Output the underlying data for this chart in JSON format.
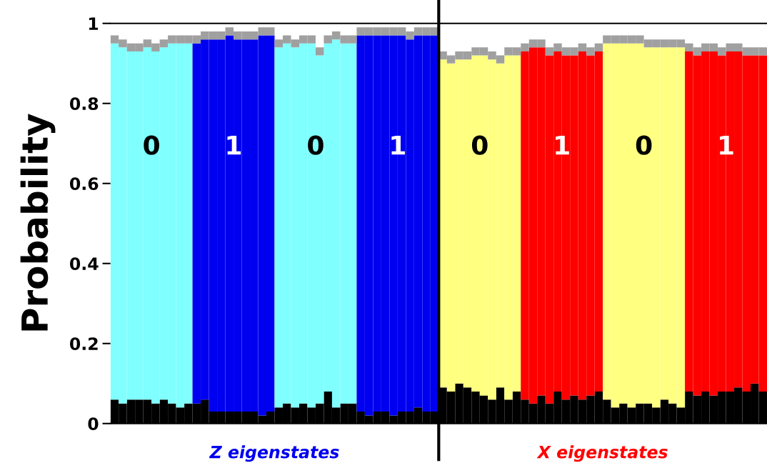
{
  "chart_data": {
    "type": "bar",
    "stacked": true,
    "ylabel": "Probability",
    "ylim": [
      0,
      1
    ],
    "yticks": [
      0,
      0.2,
      0.4,
      0.6,
      0.8,
      1
    ],
    "tick_labels": "y",
    "grid": false,
    "categories": [
      null,
      null,
      null,
      null,
      null,
      null,
      null,
      null,
      null,
      null,
      null,
      null,
      null,
      null,
      null,
      null,
      null,
      null,
      null,
      null,
      null,
      null,
      null,
      null,
      null,
      null,
      null,
      null,
      null,
      null,
      null,
      null,
      null,
      null,
      null,
      null,
      null,
      null,
      null,
      null,
      null,
      null,
      null,
      null,
      null,
      null,
      null,
      null,
      null,
      null,
      null,
      null,
      null,
      null,
      null,
      null,
      null,
      null,
      null,
      null,
      null,
      null,
      null,
      null,
      null,
      null,
      null,
      null,
      null,
      null,
      null,
      null,
      null,
      null,
      null,
      null,
      null,
      null,
      null,
      null
    ],
    "series": [
      {
        "color": "#000000",
        "values": [
          0.06,
          0.05,
          0.06,
          0.06,
          0.06,
          0.05,
          0.06,
          0.05,
          0.04,
          0.05,
          0.05,
          0.06,
          0.03,
          0.03,
          0.03,
          0.03,
          0.03,
          0.03,
          0.02,
          0.03,
          0.04,
          0.05,
          0.04,
          0.05,
          0.04,
          0.05,
          0.08,
          0.04,
          0.05,
          0.05,
          0.03,
          0.02,
          0.03,
          0.03,
          0.02,
          0.03,
          0.03,
          0.04,
          0.03,
          0.03,
          0.09,
          0.08,
          0.1,
          0.09,
          0.08,
          0.07,
          0.06,
          0.09,
          0.06,
          0.08,
          0.06,
          0.05,
          0.07,
          0.05,
          0.08,
          0.06,
          0.07,
          0.06,
          0.07,
          0.08,
          0.06,
          0.04,
          0.05,
          0.04,
          0.05,
          0.05,
          0.04,
          0.06,
          0.05,
          0.04,
          0.08,
          0.07,
          0.08,
          0.07,
          0.08,
          0.08,
          0.09,
          0.08,
          0.1,
          0.08
        ]
      },
      {
        "colors": [
          "#80ffff",
          "#80ffff",
          "#80ffff",
          "#80ffff",
          "#80ffff",
          "#80ffff",
          "#80ffff",
          "#80ffff",
          "#80ffff",
          "#80ffff",
          "#0000f0",
          "#0000f0",
          "#0000f0",
          "#0000f0",
          "#0000f0",
          "#0000f0",
          "#0000f0",
          "#0000f0",
          "#0000f0",
          "#0000f0",
          "#80ffff",
          "#80ffff",
          "#80ffff",
          "#80ffff",
          "#80ffff",
          "#80ffff",
          "#80ffff",
          "#80ffff",
          "#80ffff",
          "#80ffff",
          "#0000f0",
          "#0000f0",
          "#0000f0",
          "#0000f0",
          "#0000f0",
          "#0000f0",
          "#0000f0",
          "#0000f0",
          "#0000f0",
          "#0000f0",
          "#ffff80",
          "#ffff80",
          "#ffff80",
          "#ffff80",
          "#ffff80",
          "#ffff80",
          "#ffff80",
          "#ffff80",
          "#ffff80",
          "#ffff80",
          "#ff0000",
          "#ff0000",
          "#ff0000",
          "#ff0000",
          "#ff0000",
          "#ff0000",
          "#ff0000",
          "#ff0000",
          "#ff0000",
          "#ff0000",
          "#ffff80",
          "#ffff80",
          "#ffff80",
          "#ffff80",
          "#ffff80",
          "#ffff80",
          "#ffff80",
          "#ffff80",
          "#ffff80",
          "#ffff80",
          "#ff0000",
          "#ff0000",
          "#ff0000",
          "#ff0000",
          "#ff0000",
          "#ff0000",
          "#ff0000",
          "#ff0000",
          "#ff0000",
          "#ff0000"
        ],
        "values": [
          0.89,
          0.89,
          0.87,
          0.87,
          0.88,
          0.88,
          0.88,
          0.9,
          0.91,
          0.9,
          0.9,
          0.9,
          0.93,
          0.93,
          0.94,
          0.93,
          0.93,
          0.93,
          0.95,
          0.94,
          0.9,
          0.9,
          0.9,
          0.9,
          0.91,
          0.87,
          0.87,
          0.92,
          0.9,
          0.9,
          0.94,
          0.95,
          0.94,
          0.94,
          0.95,
          0.94,
          0.93,
          0.93,
          0.94,
          0.94,
          0.82,
          0.82,
          0.81,
          0.82,
          0.84,
          0.85,
          0.85,
          0.81,
          0.86,
          0.84,
          0.87,
          0.89,
          0.87,
          0.87,
          0.85,
          0.86,
          0.85,
          0.87,
          0.85,
          0.85,
          0.89,
          0.91,
          0.9,
          0.91,
          0.9,
          0.89,
          0.9,
          0.88,
          0.89,
          0.9,
          0.85,
          0.85,
          0.85,
          0.86,
          0.84,
          0.85,
          0.84,
          0.84,
          0.82,
          0.84
        ]
      },
      {
        "color": "#a0a0a0",
        "values": [
          0.02,
          0.02,
          0.02,
          0.02,
          0.02,
          0.02,
          0.02,
          0.02,
          0.02,
          0.02,
          0.02,
          0.02,
          0.02,
          0.02,
          0.02,
          0.02,
          0.02,
          0.02,
          0.02,
          0.02,
          0.02,
          0.02,
          0.02,
          0.02,
          0.02,
          0.02,
          0.02,
          0.02,
          0.02,
          0.02,
          0.02,
          0.02,
          0.02,
          0.02,
          0.02,
          0.02,
          0.02,
          0.02,
          0.02,
          0.02,
          0.02,
          0.02,
          0.02,
          0.02,
          0.02,
          0.02,
          0.02,
          0.02,
          0.02,
          0.02,
          0.02,
          0.02,
          0.02,
          0.02,
          0.02,
          0.02,
          0.02,
          0.02,
          0.02,
          0.02,
          0.02,
          0.02,
          0.02,
          0.02,
          0.02,
          0.02,
          0.02,
          0.02,
          0.02,
          0.02,
          0.02,
          0.02,
          0.02,
          0.02,
          0.02,
          0.02,
          0.02,
          0.02,
          0.02,
          0.02
        ]
      }
    ],
    "annotations": [
      "0",
      "1",
      "0",
      "1",
      "0",
      "1",
      "0",
      "1",
      "Z eigenstates",
      "X eigenstates"
    ]
  }
}
